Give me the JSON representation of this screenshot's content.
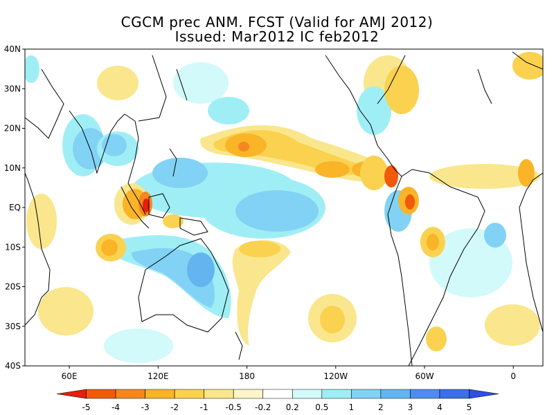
{
  "title_line1": "CGCM prec ANM. FCST  (Valid for AMJ 2012)",
  "title_line2": "Issued:  Mar2012 IC feb2012",
  "y_ticks": [
    {
      "label": "40N",
      "lat": 40
    },
    {
      "label": "30N",
      "lat": 30
    },
    {
      "label": "20N",
      "lat": 20
    },
    {
      "label": "10N",
      "lat": 10
    },
    {
      "label": "EQ",
      "lat": 0
    },
    {
      "label": "10S",
      "lat": -10
    },
    {
      "label": "20S",
      "lat": -20
    },
    {
      "label": "30S",
      "lat": -30
    },
    {
      "label": "40S",
      "lat": -40
    }
  ],
  "x_ticks": [
    {
      "label": "60E",
      "lon": 60
    },
    {
      "label": "120E",
      "lon": 120
    },
    {
      "label": "180",
      "lon": 180
    },
    {
      "label": "120W",
      "lon": 240
    },
    {
      "label": "60W",
      "lon": 300
    },
    {
      "label": "0",
      "lon": 360
    }
  ],
  "lon_range": [
    30,
    380
  ],
  "lat_range": [
    -40,
    40
  ],
  "colorbar": {
    "labels": [
      "-5",
      "-4",
      "-3",
      "-2",
      "-1",
      "-0.5",
      "-0.2",
      "0.2",
      "0.5",
      "1",
      "2",
      "3",
      "4",
      "5"
    ],
    "colors": [
      "#e61e0a",
      "#f05a0a",
      "#f5871e",
      "#fab428",
      "#fad250",
      "#fae68c",
      "#fff5c8",
      "#ffffff",
      "#d2fafa",
      "#a0eef5",
      "#82d2f5",
      "#64b4f0",
      "#508cf0",
      "#3c6eeb",
      "#2d50e6"
    ]
  },
  "colors": {
    "coast": "#000000",
    "frame": "#000000"
  }
}
